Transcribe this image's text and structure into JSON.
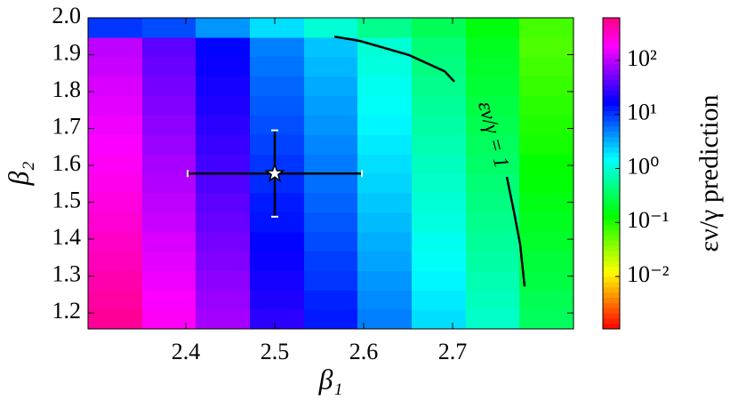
{
  "chart_data": {
    "type": "heatmap",
    "x_label": "β₁",
    "y_label": "β₂",
    "colorbar_label": "εν/γ prediction",
    "colormap": "hsv",
    "colorscale": "log",
    "x_edges": [
      2.29,
      2.351,
      2.411,
      2.472,
      2.533,
      2.593,
      2.654,
      2.715,
      2.775,
      2.836
    ],
    "y_edges": [
      1.157,
      1.21,
      1.262,
      1.315,
      1.368,
      1.42,
      1.473,
      1.526,
      1.579,
      1.631,
      1.684,
      1.737,
      1.789,
      1.842,
      1.895,
      1.947,
      2.0
    ],
    "z": [
      [
        500,
        200,
        79,
        25,
        13,
        5,
        2,
        0.89,
        0.32
      ],
      [
        450,
        180,
        70,
        22,
        12,
        4.5,
        1.8,
        0.79,
        0.29
      ],
      [
        400,
        160,
        63,
        20,
        10,
        4,
        1.6,
        0.71,
        0.25
      ],
      [
        350,
        140,
        56,
        18,
        9.2,
        3.5,
        1.4,
        0.63,
        0.23
      ],
      [
        320,
        130,
        50,
        16,
        8.2,
        3.2,
        1.3,
        0.56,
        0.2
      ],
      [
        280,
        110,
        44,
        14,
        7.3,
        2.8,
        1.1,
        0.5,
        0.18
      ],
      [
        250,
        100,
        40,
        13,
        6.5,
        2.5,
        1,
        0.45,
        0.16
      ],
      [
        220,
        89,
        35,
        11,
        5.8,
        2.2,
        0.89,
        0.4,
        0.14
      ],
      [
        200,
        80,
        31,
        10,
        5.2,
        2,
        0.8,
        0.35,
        0.13
      ],
      [
        180,
        71,
        28,
        8.9,
        4.6,
        1.8,
        0.71,
        0.32,
        0.11
      ],
      [
        160,
        63,
        25,
        7.9,
        4.1,
        1.6,
        0.63,
        0.28,
        0.1
      ],
      [
        140,
        56,
        22,
        7,
        3.7,
        1.4,
        0.56,
        0.25,
        0.09
      ],
      [
        130,
        50,
        20,
        6.3,
        3.3,
        1.3,
        0.5,
        0.22,
        0.08
      ],
      [
        110,
        45,
        18,
        5.6,
        2.9,
        1.1,
        0.45,
        0.2,
        0.072
      ],
      [
        100,
        40,
        16,
        5,
        2.6,
        1,
        0.4,
        0.18,
        0.064
      ],
      [
        10,
        8,
        4,
        2,
        1,
        0.5,
        0.3,
        0.15,
        0.07
      ]
    ],
    "xlim": [
      2.29,
      2.836
    ],
    "ylim": [
      1.157,
      2.0
    ],
    "xticks": [
      2.4,
      2.5,
      2.6,
      2.7
    ],
    "yticks": [
      1.2,
      1.3,
      1.4,
      1.5,
      1.6,
      1.7,
      1.8,
      1.9,
      {
        "value": 2.0,
        "label": "2.0"
      }
    ],
    "zlim": [
      0.00107,
      616
    ],
    "zticks": [
      {
        "value": 0.01,
        "label": "10⁻²"
      },
      {
        "value": 0.1,
        "label": "10⁻¹"
      },
      {
        "value": 1,
        "label": "10⁰"
      },
      {
        "value": 10,
        "label": "10¹"
      },
      {
        "value": 100,
        "label": "10²"
      }
    ],
    "contour": {
      "x": [
        2.567,
        2.596,
        2.651,
        2.691,
        2.702,
        null,
        2.761,
        2.769,
        2.776,
        2.781
      ],
      "y": [
        1.949,
        1.937,
        1.899,
        1.855,
        1.827,
        null,
        1.569,
        1.475,
        1.386,
        1.272
      ]
    },
    "contour_label": "εν/γ = 1",
    "point": {
      "x": 2.5,
      "y": 1.578,
      "xerr": 0.098,
      "yerr": 0.117
    }
  }
}
